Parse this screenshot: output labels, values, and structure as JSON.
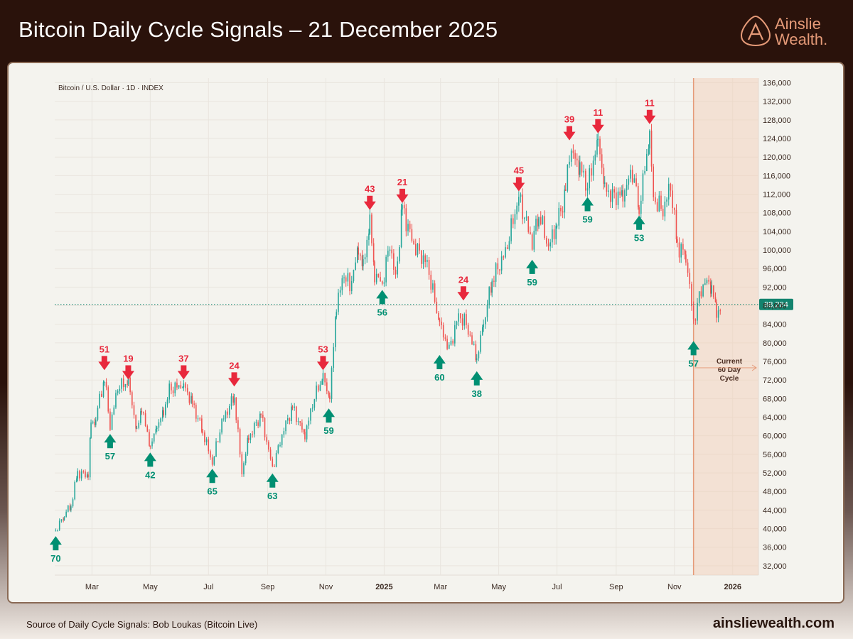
{
  "header": {
    "title": "Bitcoin Daily Cycle Signals – 21 December 2025",
    "logo_line1": "Ainslie",
    "logo_line2": "Wealth."
  },
  "footer": {
    "source": "Source of Daily Cycle Signals: Bob Loukas (Bitcoin Live)",
    "url": "ainsliewealth.com"
  },
  "colors": {
    "up": "#26a69a",
    "down": "#ef5350",
    "top_signal": "#e8283c",
    "bottom_signal": "#008f72",
    "cycle_band": "#f2ccb4",
    "accent": "#e59a78",
    "price_tag": "#13836e"
  },
  "chart_data": {
    "type": "candlestick",
    "subtitle": "Bitcoin / U.S. Dollar · 1D · INDEX",
    "ylim": [
      30000,
      137000
    ],
    "y_ticks": [
      32000,
      36000,
      40000,
      44000,
      48000,
      52000,
      56000,
      60000,
      64000,
      68000,
      72000,
      76000,
      80000,
      84000,
      88000,
      92000,
      96000,
      100000,
      104000,
      108000,
      112000,
      116000,
      120000,
      124000,
      128000,
      132000,
      136000
    ],
    "x_range": [
      "2024-01-22",
      "2026-01-28"
    ],
    "x_ticks": [
      {
        "date": "2024-03-01",
        "label": "Mar",
        "bold": false
      },
      {
        "date": "2024-05-01",
        "label": "May",
        "bold": false
      },
      {
        "date": "2024-07-01",
        "label": "Jul",
        "bold": false
      },
      {
        "date": "2024-09-01",
        "label": "Sep",
        "bold": false
      },
      {
        "date": "2024-11-01",
        "label": "Nov",
        "bold": false
      },
      {
        "date": "2025-01-01",
        "label": "2025",
        "bold": true
      },
      {
        "date": "2025-03-01",
        "label": "Mar",
        "bold": false
      },
      {
        "date": "2025-05-01",
        "label": "May",
        "bold": false
      },
      {
        "date": "2025-07-01",
        "label": "Jul",
        "bold": false
      },
      {
        "date": "2025-09-01",
        "label": "Sep",
        "bold": false
      },
      {
        "date": "2025-11-01",
        "label": "Nov",
        "bold": false
      },
      {
        "date": "2026-01-01",
        "label": "2026",
        "bold": true
      }
    ],
    "price_path": [
      [
        "2024-01-23",
        39500
      ],
      [
        "2024-02-01",
        43000
      ],
      [
        "2024-02-08",
        45000
      ],
      [
        "2024-02-15",
        52000
      ],
      [
        "2024-02-26",
        51500
      ],
      [
        "2024-02-29",
        62000
      ],
      [
        "2024-03-05",
        64000
      ],
      [
        "2024-03-14",
        72500
      ],
      [
        "2024-03-20",
        62000
      ],
      [
        "2024-03-28",
        70500
      ],
      [
        "2024-04-08",
        71500
      ],
      [
        "2024-04-17",
        61000
      ],
      [
        "2024-04-22",
        66000
      ],
      [
        "2024-05-01",
        57500
      ],
      [
        "2024-05-08",
        62000
      ],
      [
        "2024-05-15",
        65000
      ],
      [
        "2024-05-21",
        70000
      ],
      [
        "2024-06-05",
        71000
      ],
      [
        "2024-06-14",
        67000
      ],
      [
        "2024-06-25",
        61000
      ],
      [
        "2024-07-05",
        54000
      ],
      [
        "2024-07-15",
        63000
      ],
      [
        "2024-07-28",
        68500
      ],
      [
        "2024-08-05",
        52000
      ],
      [
        "2024-08-12",
        59500
      ],
      [
        "2024-08-25",
        64500
      ],
      [
        "2024-09-06",
        53000
      ],
      [
        "2024-09-18",
        61500
      ],
      [
        "2024-09-27",
        66000
      ],
      [
        "2024-10-10",
        60000
      ],
      [
        "2024-10-20",
        68500
      ],
      [
        "2024-10-29",
        72500
      ],
      [
        "2024-11-05",
        68000
      ],
      [
        "2024-11-12",
        88000
      ],
      [
        "2024-11-20",
        95000
      ],
      [
        "2024-11-26",
        92000
      ],
      [
        "2024-12-05",
        100000
      ],
      [
        "2024-12-10",
        96500
      ],
      [
        "2024-12-17",
        106000
      ],
      [
        "2024-12-22",
        95000
      ],
      [
        "2024-12-30",
        92500
      ],
      [
        "2025-01-07",
        101500
      ],
      [
        "2025-01-13",
        93500
      ],
      [
        "2025-01-20",
        109000
      ],
      [
        "2025-02-01",
        101000
      ],
      [
        "2025-02-15",
        97000
      ],
      [
        "2025-02-28",
        84000
      ],
      [
        "2025-03-10",
        78500
      ],
      [
        "2025-03-20",
        86000
      ],
      [
        "2025-03-28",
        84000
      ],
      [
        "2025-04-08",
        76500
      ],
      [
        "2025-04-15",
        84000
      ],
      [
        "2025-04-24",
        93500
      ],
      [
        "2025-05-08",
        99500
      ],
      [
        "2025-05-22",
        111500
      ],
      [
        "2025-06-05",
        101500
      ],
      [
        "2025-06-12",
        108000
      ],
      [
        "2025-06-22",
        100500
      ],
      [
        "2025-07-01",
        106000
      ],
      [
        "2025-07-10",
        112000
      ],
      [
        "2025-07-14",
        121500
      ],
      [
        "2025-07-25",
        118000
      ],
      [
        "2025-08-02",
        113500
      ],
      [
        "2025-08-13",
        124000
      ],
      [
        "2025-08-20",
        113500
      ],
      [
        "2025-08-28",
        111500
      ],
      [
        "2025-09-08",
        112000
      ],
      [
        "2025-09-18",
        117000
      ],
      [
        "2025-09-25",
        109000
      ],
      [
        "2025-10-06",
        124500
      ],
      [
        "2025-10-10",
        111000
      ],
      [
        "2025-10-20",
        108500
      ],
      [
        "2025-10-28",
        114000
      ],
      [
        "2025-11-04",
        101000
      ],
      [
        "2025-11-13",
        99000
      ],
      [
        "2025-11-21",
        84500
      ],
      [
        "2025-11-29",
        91500
      ],
      [
        "2025-12-03",
        93000
      ],
      [
        "2025-12-10",
        92500
      ],
      [
        "2025-12-15",
        86000
      ],
      [
        "2025-12-20",
        88284
      ]
    ],
    "current_price": 88284,
    "current_price_label": "88,284",
    "cycle_start": "2025-11-21",
    "cycle_end": "2026-01-28",
    "cycle_note": {
      "line1": "Current",
      "line2": "60 Day",
      "line3": "Cycle"
    },
    "signals": [
      {
        "type": "bottom",
        "label": "70",
        "date": "2024-01-23",
        "price": 39000
      },
      {
        "type": "top",
        "label": "51",
        "date": "2024-03-14",
        "price": 73500
      },
      {
        "type": "bottom",
        "label": "57",
        "date": "2024-03-20",
        "price": 61000
      },
      {
        "type": "top",
        "label": "19",
        "date": "2024-04-08",
        "price": 71500
      },
      {
        "type": "bottom",
        "label": "42",
        "date": "2024-05-01",
        "price": 57000
      },
      {
        "type": "top",
        "label": "37",
        "date": "2024-06-05",
        "price": 71500
      },
      {
        "type": "bottom",
        "label": "65",
        "date": "2024-07-05",
        "price": 53500
      },
      {
        "type": "top",
        "label": "24",
        "date": "2024-07-28",
        "price": 70000
      },
      {
        "type": "bottom",
        "label": "63",
        "date": "2024-09-06",
        "price": 52500
      },
      {
        "type": "top",
        "label": "53",
        "date": "2024-10-29",
        "price": 73500
      },
      {
        "type": "bottom",
        "label": "59",
        "date": "2024-11-04",
        "price": 66500
      },
      {
        "type": "top",
        "label": "43",
        "date": "2024-12-17",
        "price": 108000
      },
      {
        "type": "bottom",
        "label": "56",
        "date": "2024-12-30",
        "price": 92000
      },
      {
        "type": "top",
        "label": "21",
        "date": "2025-01-20",
        "price": 109500
      },
      {
        "type": "bottom",
        "label": "60",
        "date": "2025-02-28",
        "price": 78000
      },
      {
        "type": "top",
        "label": "24",
        "date": "2025-03-25",
        "price": 88500
      },
      {
        "type": "bottom",
        "label": "38",
        "date": "2025-04-08",
        "price": 74500
      },
      {
        "type": "top",
        "label": "45",
        "date": "2025-05-22",
        "price": 112000
      },
      {
        "type": "bottom",
        "label": "59",
        "date": "2025-06-05",
        "price": 98500
      },
      {
        "type": "top",
        "label": "39",
        "date": "2025-07-14",
        "price": 123000
      },
      {
        "type": "bottom",
        "label": "59",
        "date": "2025-08-02",
        "price": 112000
      },
      {
        "type": "top",
        "label": "11",
        "date": "2025-08-13",
        "price": 124500
      },
      {
        "type": "bottom",
        "label": "53",
        "date": "2025-09-25",
        "price": 108000
      },
      {
        "type": "top",
        "label": "11",
        "date": "2025-10-06",
        "price": 126500
      },
      {
        "type": "bottom",
        "label": "57",
        "date": "2025-11-21",
        "price": 81000
      }
    ]
  }
}
